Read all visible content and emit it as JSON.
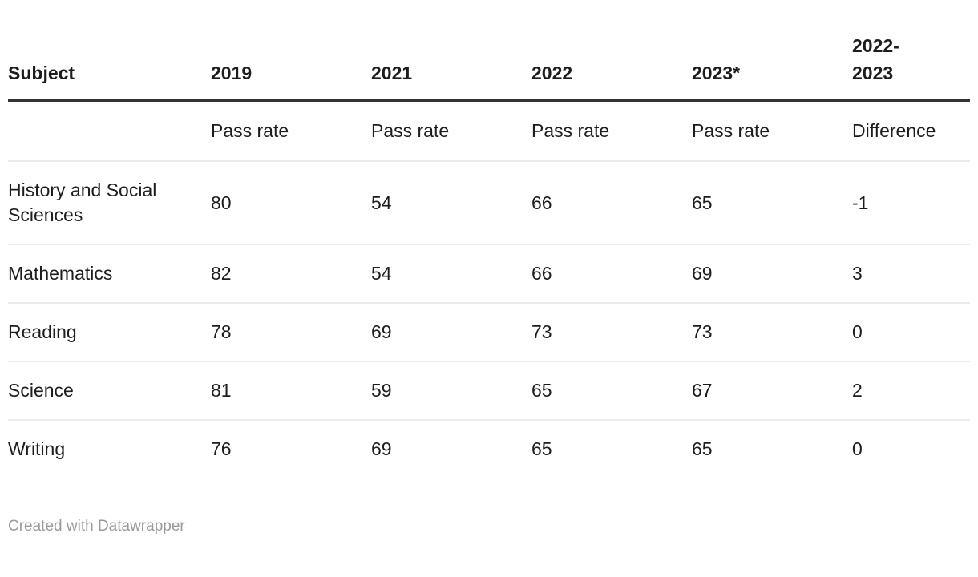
{
  "table": {
    "columns": [
      {
        "label": "Subject",
        "sub": ""
      },
      {
        "label": "2019",
        "sub": "Pass rate"
      },
      {
        "label": "2021",
        "sub": "Pass rate"
      },
      {
        "label": "2022",
        "sub": "Pass rate"
      },
      {
        "label": "2023*",
        "sub": "Pass rate"
      },
      {
        "label": "2022-2023",
        "sub": "Difference"
      }
    ],
    "rows": [
      {
        "subject": "History and Social Sciences",
        "values": [
          "80",
          "54",
          "66",
          "65",
          "-1"
        ]
      },
      {
        "subject": "Mathematics",
        "values": [
          "82",
          "54",
          "66",
          "69",
          "3"
        ]
      },
      {
        "subject": "Reading",
        "values": [
          "78",
          "69",
          "73",
          "73",
          "0"
        ]
      },
      {
        "subject": "Science",
        "values": [
          "81",
          "59",
          "65",
          "67",
          "2"
        ]
      },
      {
        "subject": "Writing",
        "values": [
          "76",
          "69",
          "65",
          "65",
          "0"
        ]
      }
    ]
  },
  "footer": {
    "credit": "Created with Datawrapper"
  },
  "colors": {
    "text": "#1d1d1d",
    "header_rule": "#333333",
    "row_divider": "#ebebeb",
    "credit_text": "#9a9a9a",
    "background": "#ffffff"
  },
  "chart_data": {
    "type": "table",
    "title": "",
    "columns": [
      "Subject",
      "2019 Pass rate",
      "2021 Pass rate",
      "2022 Pass rate",
      "2023* Pass rate",
      "2022-2023 Difference"
    ],
    "rows": [
      [
        "History and Social Sciences",
        80,
        54,
        66,
        65,
        -1
      ],
      [
        "Mathematics",
        82,
        54,
        66,
        69,
        3
      ],
      [
        "Reading",
        78,
        69,
        73,
        73,
        0
      ],
      [
        "Science",
        81,
        59,
        65,
        67,
        2
      ],
      [
        "Writing",
        76,
        69,
        65,
        65,
        0
      ]
    ],
    "layout_hints": {
      "header_alignment": "left",
      "value_alignment": "left",
      "thick_rule_below_header": true,
      "light_row_dividers": true,
      "no_bottom_border_on_last_row": true
    }
  }
}
